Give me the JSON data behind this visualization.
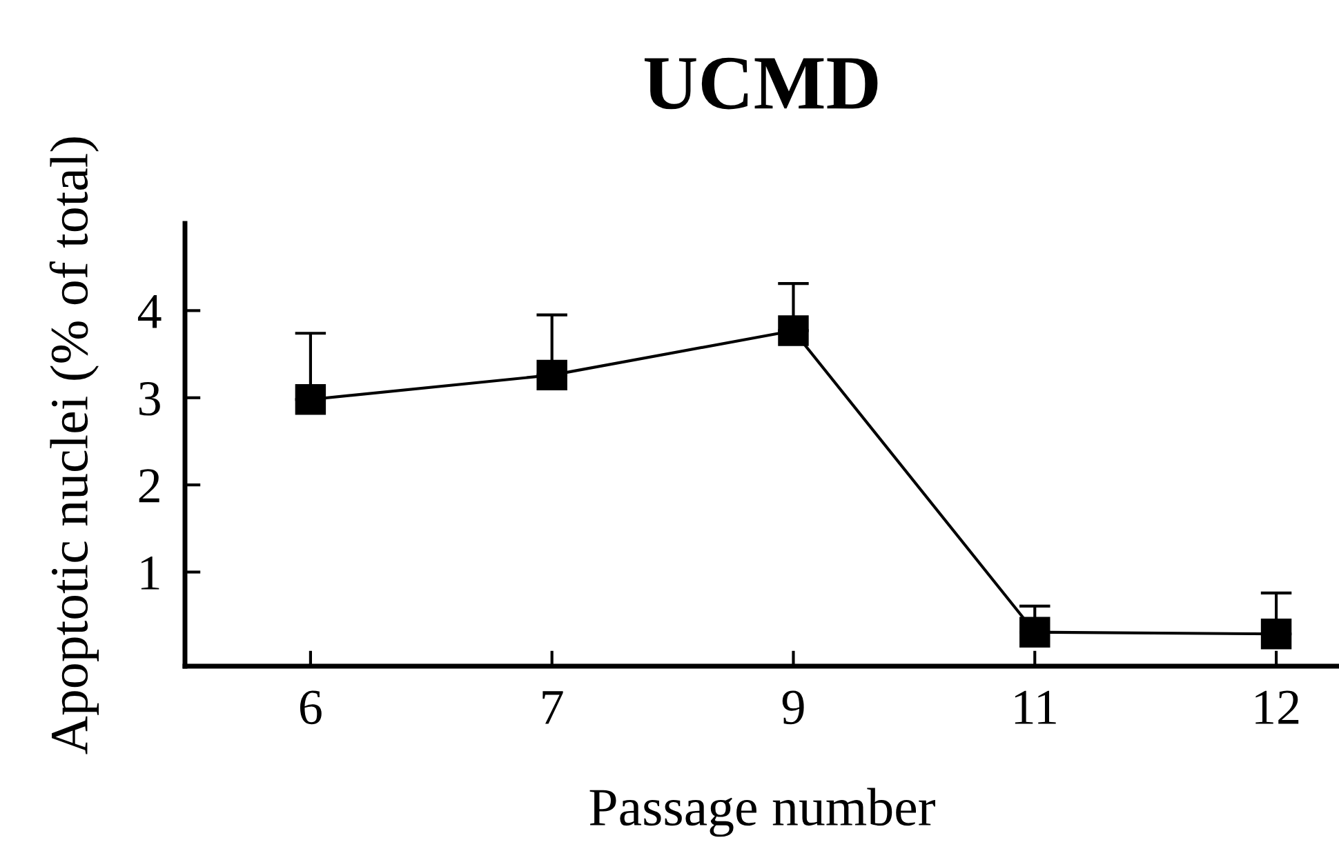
{
  "chart_data": {
    "type": "line",
    "title": "UCMD",
    "xlabel": "Passage number",
    "ylabel": "Apoptotic nuclei (% of total)",
    "categories": [
      "6",
      "7",
      "9",
      "11",
      "12"
    ],
    "series": [
      {
        "color": "#000000",
        "values": [
          2.98,
          3.26,
          3.77,
          0.31,
          0.29
        ],
        "errors": [
          [
            2.98,
            3.74
          ],
          [
            3.26,
            3.95
          ],
          [
            3.77,
            4.31
          ],
          [
            0.31,
            0.61
          ],
          [
            0.29,
            0.76
          ]
        ]
      }
    ],
    "ylim": [
      -0.08,
      5.0
    ],
    "yticks": [
      1,
      2,
      3,
      4
    ],
    "marker": "square",
    "line_style": "solid",
    "grid": false,
    "legend": false
  }
}
